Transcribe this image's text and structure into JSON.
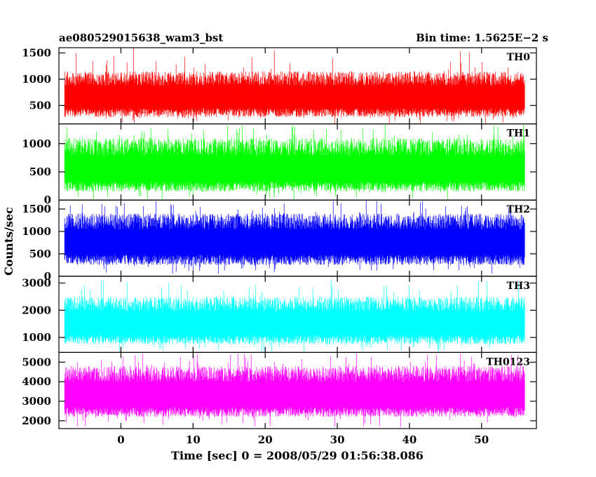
{
  "chart_data": {
    "type": "line",
    "title_left": "ae080529015638_wam3_bst",
    "title_right": "Bin time: 1.5625E−2 s",
    "xlabel": "Time [sec] 0 = 2008/05/29 01:56:38.086",
    "ylabel": "Counts/sec",
    "xlim": [
      -8.6,
      57.6
    ],
    "data_xrange": [
      -7.8,
      56.0
    ],
    "x_ticks": [
      0,
      10,
      20,
      30,
      40,
      50
    ],
    "x_tick_labels": [
      "0",
      "10",
      "20",
      "30",
      "40",
      "50"
    ],
    "grid": false,
    "panels": [
      {
        "name": "TH0",
        "color": "#ff0000",
        "ylim": [
          150,
          1600
        ],
        "y_ticks": [
          500,
          1000,
          1500
        ],
        "y_tick_labels": [
          "500",
          "1000",
          "1500"
        ],
        "mean": 650,
        "typical_low": 280,
        "typical_high": 1150,
        "min": 160,
        "max": 1600
      },
      {
        "name": "TH1",
        "color": "#00ff00",
        "ylim": [
          0,
          1350
        ],
        "y_ticks": [
          0,
          500,
          1000
        ],
        "y_tick_labels": [
          "0",
          "500",
          "1000"
        ],
        "mean": 530,
        "typical_low": 150,
        "typical_high": 1100,
        "min": 10,
        "max": 1350
      },
      {
        "name": "TH2",
        "color": "#0000ff",
        "ylim": [
          0,
          1700
        ],
        "y_ticks": [
          0,
          500,
          1000,
          1500
        ],
        "y_tick_labels": [
          "0",
          "500",
          "1000",
          "1500"
        ],
        "mean": 750,
        "typical_low": 250,
        "typical_high": 1400,
        "min": 40,
        "max": 1700
      },
      {
        "name": "TH3",
        "color": "#00ffff",
        "ylim": [
          450,
          3250
        ],
        "y_ticks": [
          1000,
          2000,
          3000
        ],
        "y_tick_labels": [
          "1000",
          "2000",
          "3000"
        ],
        "mean": 1500,
        "typical_low": 750,
        "typical_high": 2500,
        "min": 460,
        "max": 3150
      },
      {
        "name": "TH0123",
        "color": "#ff00ff",
        "ylim": [
          1600,
          5500
        ],
        "y_ticks": [
          2000,
          3000,
          4000,
          5000
        ],
        "y_tick_labels": [
          "2000",
          "3000",
          "4000",
          "5000"
        ],
        "mean": 3300,
        "typical_low": 2200,
        "typical_high": 4800,
        "min": 1650,
        "max": 5450
      }
    ]
  }
}
